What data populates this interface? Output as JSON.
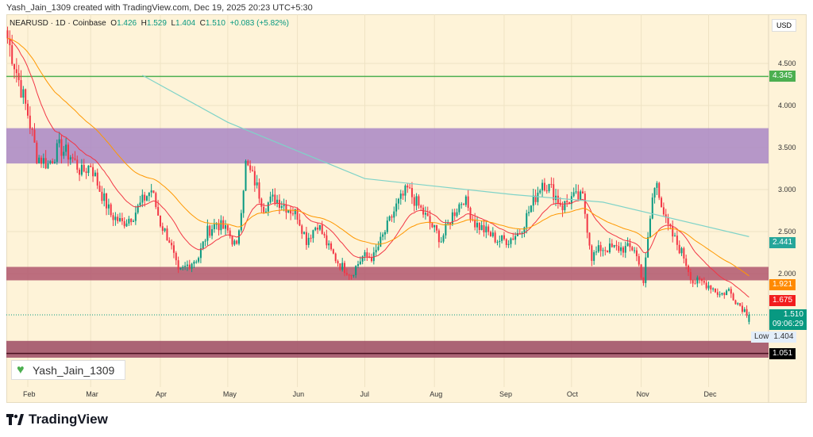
{
  "credit": "Yash_Jain_1309 created with TradingView.com, Dec 19, 2025 20:23 UTC+5:30",
  "legend": {
    "symbol": "NEARUSD · 1D · Coinbase",
    "o_label": "O",
    "o": "1.426",
    "h_label": "H",
    "h": "1.529",
    "l_label": "L",
    "l": "1.404",
    "c_label": "C",
    "c": "1.510",
    "change": "+0.083 (+5.82%)"
  },
  "currency": "USD",
  "watermark": "Yash_Jain_1309",
  "brand": "TradingView",
  "price_labels": [
    {
      "text": "4.345",
      "price": 4.345,
      "color": "#4caf50",
      "fg": "#fff"
    },
    {
      "text": "2.441",
      "price": 2.441,
      "color": "#26a69a",
      "fg": "#fff"
    },
    {
      "text": "1.921",
      "price": 1.921,
      "color": "#ff8a00",
      "fg": "#fff"
    },
    {
      "text": "1.675",
      "price": 1.675,
      "color": "#f21d1d",
      "fg": "#fff"
    },
    {
      "text": "1.510",
      "price": 1.51,
      "color": "#089981",
      "fg": "#fff"
    },
    {
      "text": "1.051",
      "price": 1.051,
      "color": "#000000",
      "fg": "#fff"
    }
  ],
  "countdown": "09:06:29",
  "low_label": "Low",
  "low_value": "1.404",
  "chart_data": {
    "type": "candlestick",
    "y_ticks": [
      4.5,
      4.0,
      3.5,
      3.0,
      2.5,
      2.0
    ],
    "y_tick_labels": [
      "4.500",
      "4.000",
      "3.500",
      "3.000",
      "2.500",
      "2.000"
    ],
    "ylim": [
      0.9,
      5.1
    ],
    "x_ticks": [
      {
        "label": "Feb",
        "date": "2025-02-01"
      },
      {
        "label": "Mar",
        "date": "2025-03-01"
      },
      {
        "label": "Apr",
        "date": "2025-04-01"
      },
      {
        "label": "May",
        "date": "2025-05-01"
      },
      {
        "label": "Jun",
        "date": "2025-06-01"
      },
      {
        "label": "Jul",
        "date": "2025-07-01"
      },
      {
        "label": "Aug",
        "date": "2025-08-01"
      },
      {
        "label": "Sep",
        "date": "2025-09-01"
      },
      {
        "label": "Oct",
        "date": "2025-10-01"
      },
      {
        "label": "Nov",
        "date": "2025-11-01"
      },
      {
        "label": "Dec",
        "date": "2025-12-01"
      }
    ],
    "xlim": [
      "2025-01-22",
      "2026-01-01"
    ],
    "closes": [
      [
        "2025-01-23",
        4.8
      ],
      [
        "2025-01-28",
        4.3
      ],
      [
        "2025-02-01",
        3.9
      ],
      [
        "2025-02-05",
        3.4
      ],
      [
        "2025-02-10",
        3.3
      ],
      [
        "2025-02-15",
        3.5
      ],
      [
        "2025-02-20",
        3.4
      ],
      [
        "2025-02-25",
        3.2
      ],
      [
        "2025-03-01",
        3.3
      ],
      [
        "2025-03-05",
        3.0
      ],
      [
        "2025-03-10",
        2.7
      ],
      [
        "2025-03-15",
        2.6
      ],
      [
        "2025-03-20",
        2.7
      ],
      [
        "2025-03-25",
        2.9
      ],
      [
        "2025-03-28",
        3.0
      ],
      [
        "2025-04-01",
        2.6
      ],
      [
        "2025-04-05",
        2.4
      ],
      [
        "2025-04-09",
        2.0
      ],
      [
        "2025-04-13",
        2.1
      ],
      [
        "2025-04-18",
        2.2
      ],
      [
        "2025-04-22",
        2.5
      ],
      [
        "2025-04-26",
        2.6
      ],
      [
        "2025-05-01",
        2.5
      ],
      [
        "2025-05-05",
        2.3
      ],
      [
        "2025-05-09",
        3.3
      ],
      [
        "2025-05-13",
        3.1
      ],
      [
        "2025-05-17",
        2.8
      ],
      [
        "2025-05-22",
        2.9
      ],
      [
        "2025-05-27",
        2.8
      ],
      [
        "2025-06-01",
        2.7
      ],
      [
        "2025-06-05",
        2.4
      ],
      [
        "2025-06-10",
        2.6
      ],
      [
        "2025-06-15",
        2.3
      ],
      [
        "2025-06-20",
        2.1
      ],
      [
        "2025-06-25",
        2.0
      ],
      [
        "2025-06-30",
        2.2
      ],
      [
        "2025-07-05",
        2.2
      ],
      [
        "2025-07-10",
        2.5
      ],
      [
        "2025-07-15",
        2.8
      ],
      [
        "2025-07-20",
        3.0
      ],
      [
        "2025-07-25",
        2.8
      ],
      [
        "2025-07-30",
        2.6
      ],
      [
        "2025-08-04",
        2.4
      ],
      [
        "2025-08-09",
        2.7
      ],
      [
        "2025-08-14",
        2.9
      ],
      [
        "2025-08-19",
        2.6
      ],
      [
        "2025-08-24",
        2.5
      ],
      [
        "2025-08-29",
        2.4
      ],
      [
        "2025-09-03",
        2.4
      ],
      [
        "2025-09-08",
        2.5
      ],
      [
        "2025-09-13",
        2.8
      ],
      [
        "2025-09-18",
        3.1
      ],
      [
        "2025-09-22",
        3.0
      ],
      [
        "2025-09-27",
        2.8
      ],
      [
        "2025-10-01",
        2.9
      ],
      [
        "2025-10-06",
        2.9
      ],
      [
        "2025-10-10",
        2.2
      ],
      [
        "2025-10-14",
        2.3
      ],
      [
        "2025-10-19",
        2.3
      ],
      [
        "2025-10-24",
        2.3
      ],
      [
        "2025-10-29",
        2.3
      ],
      [
        "2025-11-02",
        1.9
      ],
      [
        "2025-11-06",
        2.9
      ],
      [
        "2025-11-08",
        3.1
      ],
      [
        "2025-11-12",
        2.6
      ],
      [
        "2025-11-16",
        2.4
      ],
      [
        "2025-11-20",
        2.2
      ],
      [
        "2025-11-24",
        1.9
      ],
      [
        "2025-11-28",
        1.9
      ],
      [
        "2025-12-02",
        1.85
      ],
      [
        "2025-12-06",
        1.75
      ],
      [
        "2025-12-10",
        1.8
      ],
      [
        "2025-12-14",
        1.65
      ],
      [
        "2025-12-19",
        1.51
      ]
    ],
    "ma_long": [
      [
        "2025-03-24",
        4.36
      ],
      [
        "2025-05-01",
        3.8
      ],
      [
        "2025-07-01",
        3.13
      ],
      [
        "2025-09-05",
        2.94
      ],
      [
        "2025-10-15",
        2.85
      ],
      [
        "2025-12-19",
        2.44
      ]
    ],
    "zones": [
      {
        "from": 3.31,
        "to": 3.73,
        "color": "#a986c6"
      },
      {
        "from": 1.92,
        "to": 2.08,
        "color": "#b0566f"
      },
      {
        "from": 1.0,
        "to": 1.2,
        "color": "#9c4a64"
      }
    ],
    "hlines": [
      {
        "price": 4.345,
        "color": "#4caf50"
      },
      {
        "price": 1.051,
        "color": "#4a1020"
      }
    ],
    "current_price": 1.51,
    "colors": {
      "up": "#089981",
      "down": "#f23645",
      "ma_fast": "#f23645",
      "ma_mid": "#ff9800",
      "ma_long": "#7fd3c8"
    }
  }
}
